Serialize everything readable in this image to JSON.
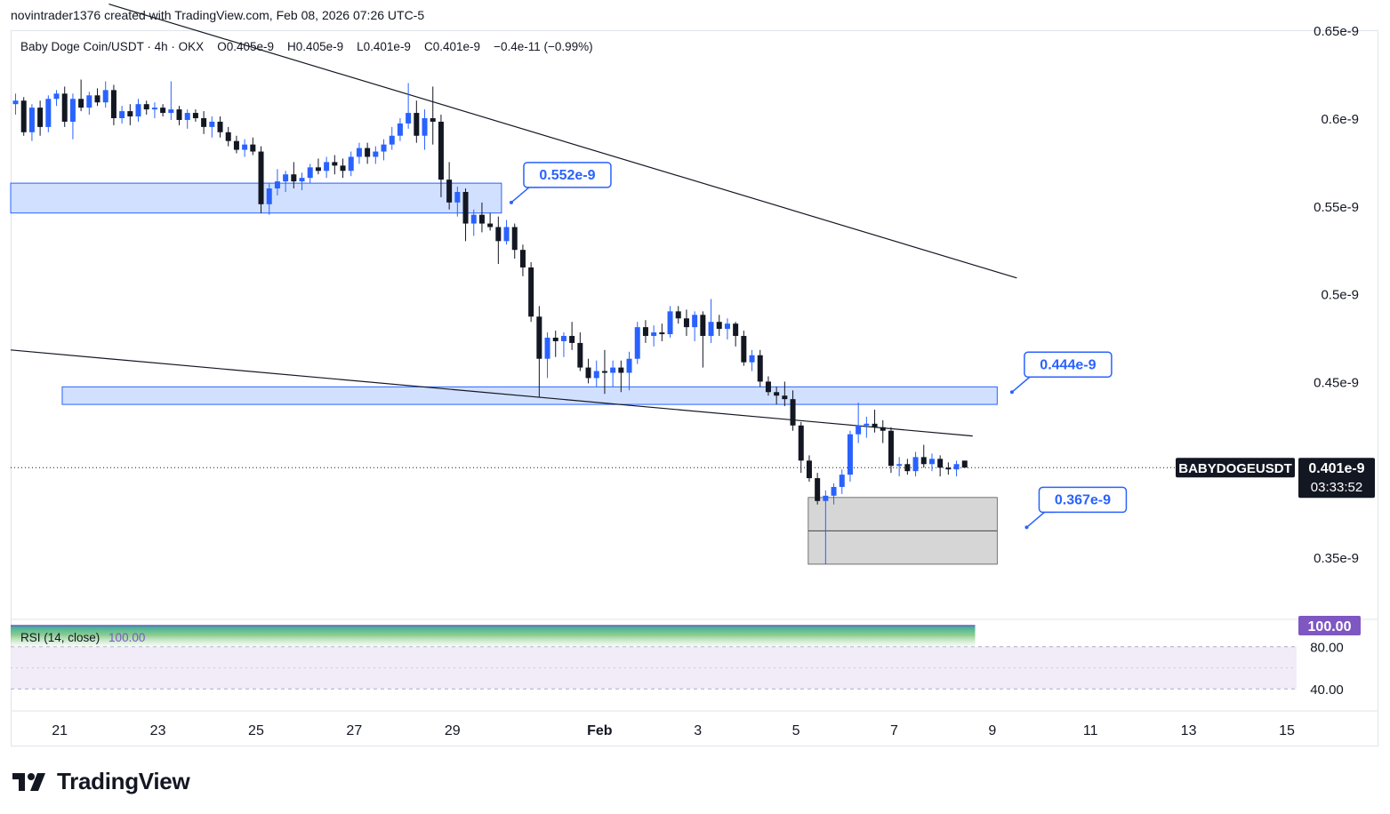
{
  "header": {
    "credit": "novintrader1376 created with TradingView.com, Feb 08, 2026 07:26 UTC-5"
  },
  "legend": {
    "symbol": "Baby Doge Coin/USDT",
    "interval": "4h",
    "exchange": "OKX",
    "open": "O0.405e-9",
    "high": "H0.405e-9",
    "low": "L0.401e-9",
    "close": "C0.401e-9",
    "change": "−0.4e-11 (−0.99%)"
  },
  "price_tag": {
    "symbol": "BABYDOGEUSDT",
    "price": "0.401e-9",
    "countdown": "03:33:52"
  },
  "rsi": {
    "label": "RSI (14, close)",
    "value": "100.00",
    "ticks": [
      "80.00",
      "40.00"
    ]
  },
  "footer": {
    "brand": "TradingView"
  },
  "colors": {
    "up": "#2962ff",
    "down": "#131722",
    "zone": "#d1e0ff",
    "zone_border": "#2962ff",
    "rsi_badge": "#7e57c2",
    "gray_zone": "#d6d6d6"
  },
  "chart_data": {
    "type": "candlestick",
    "title": "Baby Doge Coin/USDT",
    "timeframe": "4h",
    "y_unit": "e-9 USDT",
    "y_ticks": [
      {
        "value": 0.65,
        "label": "0.65e-9"
      },
      {
        "value": 0.6,
        "label": "0.6e-9"
      },
      {
        "value": 0.55,
        "label": "0.55e-9"
      },
      {
        "value": 0.5,
        "label": "0.5e-9"
      },
      {
        "value": 0.45,
        "label": "0.45e-9"
      },
      {
        "value": 0.35,
        "label": "0.35e-9"
      }
    ],
    "ylim": [
      0.33,
      0.66
    ],
    "x_ticks": [
      {
        "day": 21,
        "label": "21"
      },
      {
        "day": 23,
        "label": "23"
      },
      {
        "day": 25,
        "label": "25"
      },
      {
        "day": 27,
        "label": "27"
      },
      {
        "day": 29,
        "label": "29"
      },
      {
        "day": 32,
        "label": "Feb"
      },
      {
        "day": 34,
        "label": "3"
      },
      {
        "day": 36,
        "label": "5"
      },
      {
        "day": 38,
        "label": "7"
      },
      {
        "day": 40,
        "label": "9"
      },
      {
        "day": 42,
        "label": "11"
      },
      {
        "day": 44,
        "label": "13"
      },
      {
        "day": 46,
        "label": "15"
      }
    ],
    "xlim": [
      20,
      46.2
    ],
    "x_axis_note": "days since Jan 0 (Feb 1 = day 32)",
    "candle_start_day": 20.1,
    "candle_step_days": 0.1667,
    "candles": [
      [
        0.608,
        0.614,
        0.602,
        0.61
      ],
      [
        0.61,
        0.612,
        0.59,
        0.592
      ],
      [
        0.592,
        0.608,
        0.587,
        0.606
      ],
      [
        0.606,
        0.61,
        0.59,
        0.595
      ],
      [
        0.595,
        0.613,
        0.592,
        0.611
      ],
      [
        0.611,
        0.616,
        0.607,
        0.614
      ],
      [
        0.614,
        0.618,
        0.595,
        0.598
      ],
      [
        0.598,
        0.614,
        0.588,
        0.611
      ],
      [
        0.611,
        0.622,
        0.604,
        0.606
      ],
      [
        0.606,
        0.615,
        0.602,
        0.613
      ],
      [
        0.613,
        0.617,
        0.607,
        0.609
      ],
      [
        0.609,
        0.621,
        0.606,
        0.616
      ],
      [
        0.616,
        0.619,
        0.596,
        0.6
      ],
      [
        0.6,
        0.607,
        0.597,
        0.604
      ],
      [
        0.604,
        0.608,
        0.596,
        0.601
      ],
      [
        0.601,
        0.611,
        0.598,
        0.608
      ],
      [
        0.608,
        0.61,
        0.602,
        0.605
      ],
      [
        0.605,
        0.609,
        0.6,
        0.606
      ],
      [
        0.606,
        0.608,
        0.601,
        0.603
      ],
      [
        0.603,
        0.621,
        0.599,
        0.605
      ],
      [
        0.605,
        0.607,
        0.596,
        0.599
      ],
      [
        0.599,
        0.605,
        0.594,
        0.603
      ],
      [
        0.603,
        0.605,
        0.598,
        0.6
      ],
      [
        0.6,
        0.604,
        0.591,
        0.595
      ],
      [
        0.595,
        0.601,
        0.589,
        0.598
      ],
      [
        0.598,
        0.601,
        0.589,
        0.592
      ],
      [
        0.592,
        0.595,
        0.584,
        0.587
      ],
      [
        0.587,
        0.59,
        0.58,
        0.582
      ],
      [
        0.582,
        0.588,
        0.578,
        0.585
      ],
      [
        0.585,
        0.589,
        0.579,
        0.581
      ],
      [
        0.581,
        0.584,
        0.546,
        0.551
      ],
      [
        0.551,
        0.563,
        0.545,
        0.56
      ],
      [
        0.56,
        0.571,
        0.556,
        0.564
      ],
      [
        0.564,
        0.57,
        0.558,
        0.568
      ],
      [
        0.568,
        0.575,
        0.56,
        0.564
      ],
      [
        0.564,
        0.569,
        0.559,
        0.566
      ],
      [
        0.566,
        0.574,
        0.563,
        0.572
      ],
      [
        0.572,
        0.577,
        0.568,
        0.57
      ],
      [
        0.57,
        0.578,
        0.566,
        0.575
      ],
      [
        0.575,
        0.579,
        0.568,
        0.573
      ],
      [
        0.573,
        0.577,
        0.566,
        0.57
      ],
      [
        0.57,
        0.581,
        0.567,
        0.578
      ],
      [
        0.578,
        0.586,
        0.574,
        0.583
      ],
      [
        0.583,
        0.586,
        0.574,
        0.578
      ],
      [
        0.578,
        0.584,
        0.574,
        0.581
      ],
      [
        0.581,
        0.588,
        0.576,
        0.585
      ],
      [
        0.585,
        0.595,
        0.582,
        0.59
      ],
      [
        0.59,
        0.6,
        0.587,
        0.597
      ],
      [
        0.597,
        0.62,
        0.594,
        0.603
      ],
      [
        0.603,
        0.61,
        0.586,
        0.59
      ],
      [
        0.59,
        0.605,
        0.582,
        0.6
      ],
      [
        0.6,
        0.618,
        0.585,
        0.598
      ],
      [
        0.598,
        0.602,
        0.555,
        0.565
      ],
      [
        0.565,
        0.575,
        0.548,
        0.552
      ],
      [
        0.552,
        0.561,
        0.544,
        0.558
      ],
      [
        0.558,
        0.56,
        0.53,
        0.54
      ],
      [
        0.54,
        0.548,
        0.533,
        0.545
      ],
      [
        0.545,
        0.552,
        0.535,
        0.54
      ],
      [
        0.54,
        0.546,
        0.536,
        0.538
      ],
      [
        0.538,
        0.544,
        0.517,
        0.53
      ],
      [
        0.53,
        0.542,
        0.528,
        0.538
      ],
      [
        0.538,
        0.54,
        0.52,
        0.525
      ],
      [
        0.525,
        0.528,
        0.51,
        0.515
      ],
      [
        0.515,
        0.518,
        0.484,
        0.487
      ],
      [
        0.487,
        0.493,
        0.441,
        0.463
      ],
      [
        0.463,
        0.478,
        0.452,
        0.475
      ],
      [
        0.475,
        0.479,
        0.464,
        0.473
      ],
      [
        0.473,
        0.478,
        0.464,
        0.476
      ],
      [
        0.476,
        0.484,
        0.468,
        0.472
      ],
      [
        0.472,
        0.478,
        0.456,
        0.458
      ],
      [
        0.458,
        0.463,
        0.449,
        0.452
      ],
      [
        0.452,
        0.462,
        0.447,
        0.456
      ],
      [
        0.456,
        0.468,
        0.443,
        0.455
      ],
      [
        0.455,
        0.462,
        0.447,
        0.458
      ],
      [
        0.458,
        0.462,
        0.444,
        0.455
      ],
      [
        0.455,
        0.467,
        0.445,
        0.463
      ],
      [
        0.463,
        0.484,
        0.46,
        0.481
      ],
      [
        0.481,
        0.485,
        0.472,
        0.476
      ],
      [
        0.476,
        0.482,
        0.47,
        0.478
      ],
      [
        0.478,
        0.483,
        0.473,
        0.477
      ],
      [
        0.477,
        0.493,
        0.475,
        0.49
      ],
      [
        0.49,
        0.493,
        0.483,
        0.486
      ],
      [
        0.486,
        0.491,
        0.476,
        0.481
      ],
      [
        0.481,
        0.49,
        0.473,
        0.488
      ],
      [
        0.488,
        0.49,
        0.458,
        0.476
      ],
      [
        0.476,
        0.497,
        0.472,
        0.484
      ],
      [
        0.484,
        0.488,
        0.476,
        0.48
      ],
      [
        0.48,
        0.486,
        0.474,
        0.483
      ],
      [
        0.483,
        0.484,
        0.47,
        0.476
      ],
      [
        0.476,
        0.479,
        0.459,
        0.461
      ],
      [
        0.461,
        0.468,
        0.456,
        0.465
      ],
      [
        0.465,
        0.468,
        0.447,
        0.45
      ],
      [
        0.45,
        0.453,
        0.442,
        0.444
      ],
      [
        0.444,
        0.447,
        0.437,
        0.442
      ],
      [
        0.442,
        0.45,
        0.436,
        0.44
      ],
      [
        0.44,
        0.445,
        0.422,
        0.425
      ],
      [
        0.425,
        0.427,
        0.398,
        0.405
      ],
      [
        0.405,
        0.408,
        0.393,
        0.395
      ],
      [
        0.395,
        0.398,
        0.38,
        0.382
      ],
      [
        0.382,
        0.388,
        0.346,
        0.385
      ],
      [
        0.385,
        0.392,
        0.38,
        0.39
      ],
      [
        0.39,
        0.4,
        0.386,
        0.397
      ],
      [
        0.397,
        0.422,
        0.393,
        0.42
      ],
      [
        0.42,
        0.438,
        0.415,
        0.425
      ],
      [
        0.425,
        0.43,
        0.418,
        0.426
      ],
      [
        0.426,
        0.434,
        0.421,
        0.424
      ],
      [
        0.424,
        0.428,
        0.415,
        0.422
      ],
      [
        0.422,
        0.424,
        0.398,
        0.402
      ],
      [
        0.402,
        0.407,
        0.396,
        0.403
      ],
      [
        0.403,
        0.406,
        0.397,
        0.399
      ],
      [
        0.399,
        0.41,
        0.396,
        0.407
      ],
      [
        0.407,
        0.414,
        0.401,
        0.403
      ],
      [
        0.403,
        0.409,
        0.399,
        0.406
      ],
      [
        0.406,
        0.408,
        0.396,
        0.401
      ],
      [
        0.401,
        0.404,
        0.397,
        0.4
      ],
      [
        0.4,
        0.405,
        0.396,
        0.403
      ],
      [
        0.405,
        0.405,
        0.401,
        0.401
      ]
    ],
    "zones": [
      {
        "label": "0.552e-9",
        "from_day": 20,
        "to_day": 30.0,
        "low": 0.546,
        "high": 0.563,
        "color": "#d1e0ff"
      },
      {
        "label": "0.444e-9",
        "from_day": 21.05,
        "to_day": 40.1,
        "low": 0.437,
        "high": 0.447,
        "color": "#d1e0ff"
      }
    ],
    "gray_zone": {
      "from_day": 36.25,
      "to_day": 40.1,
      "low": 0.346,
      "high": 0.384,
      "mid": 0.365
    },
    "trendlines": [
      {
        "from": [
          22.0,
          0.665
        ],
        "to": [
          40.5,
          0.509
        ]
      },
      {
        "from": [
          20.0,
          0.468
        ],
        "to": [
          39.6,
          0.419
        ]
      }
    ],
    "callouts": [
      {
        "label": "0.552e-9",
        "value": 0.552,
        "anchor": [
          30.2,
          0.552
        ]
      },
      {
        "label": "0.444e-9",
        "value": 0.444,
        "anchor": [
          40.4,
          0.444
        ]
      },
      {
        "label": "0.367e-9",
        "value": 0.367,
        "anchor": [
          40.7,
          0.367
        ]
      }
    ],
    "last_price": 0.401,
    "rsi": {
      "value": 100.0,
      "end_day": 39.65,
      "levels": [
        80,
        40
      ],
      "ylim": [
        20,
        105
      ]
    }
  }
}
